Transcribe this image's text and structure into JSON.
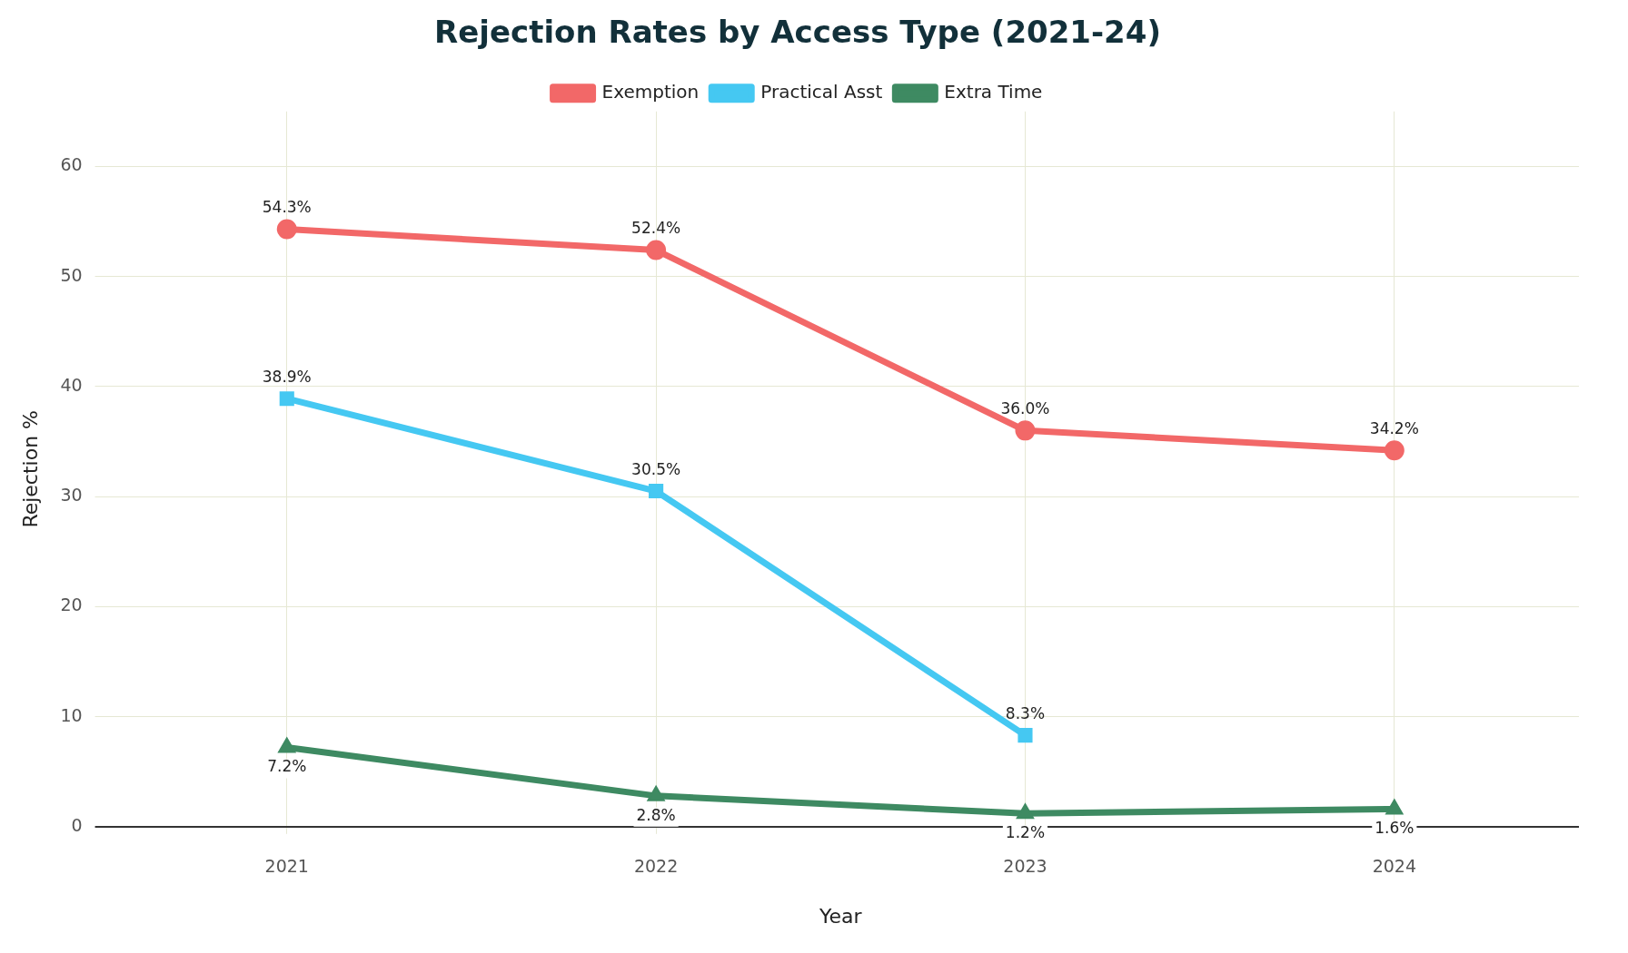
{
  "chart_data": {
    "type": "line",
    "title": "Rejection Rates by Access Type (2021-24)",
    "xlabel": "Year",
    "ylabel": "Rejection %",
    "categories": [
      "2021",
      "2022",
      "2023",
      "2024"
    ],
    "series": [
      {
        "name": "Exemption",
        "color": "#f26868",
        "marker": "circle",
        "values": [
          54.3,
          52.4,
          36.0,
          34.2
        ],
        "value_labels": [
          "54.3%",
          "52.4%",
          "36.0%",
          "34.2%"
        ]
      },
      {
        "name": "Practical Asst",
        "color": "#45c8f2",
        "marker": "square",
        "values": [
          38.9,
          30.5,
          8.3,
          null
        ],
        "value_labels": [
          "38.9%",
          "30.5%",
          "8.3%",
          null
        ]
      },
      {
        "name": "Extra Time",
        "color": "#3e8a62",
        "marker": "triangle",
        "values": [
          7.2,
          2.8,
          1.2,
          1.6
        ],
        "value_labels": [
          "7.2%",
          "2.8%",
          "1.2%",
          "1.6%"
        ]
      }
    ],
    "ylim": [
      0,
      65
    ],
    "yticks": [
      0,
      10,
      20,
      30,
      40,
      50,
      60
    ],
    "grid": true,
    "legend": "top",
    "line_style": "solid"
  }
}
